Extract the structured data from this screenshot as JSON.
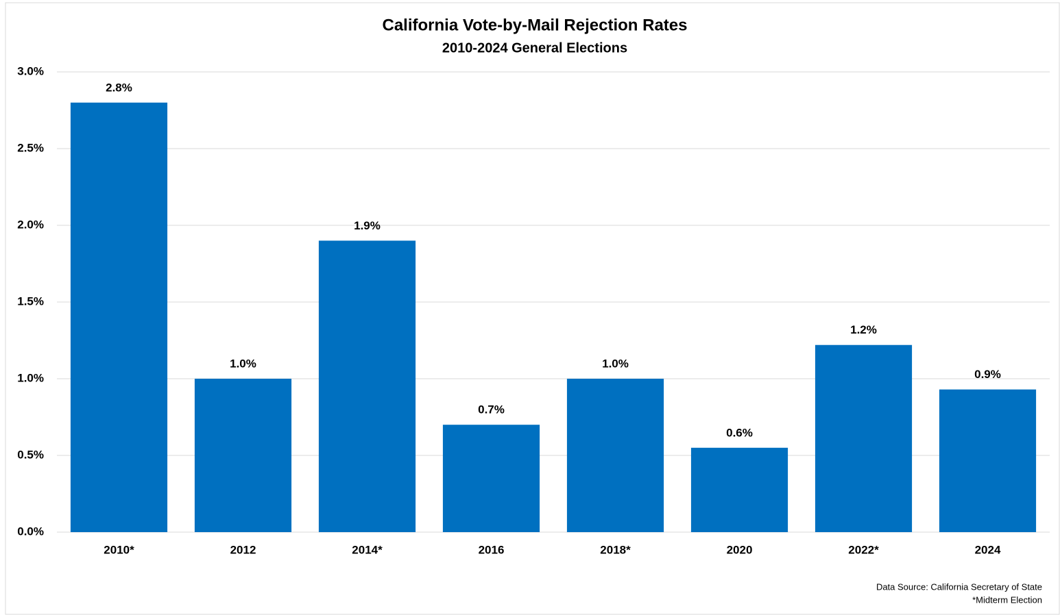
{
  "chart_data": {
    "type": "bar",
    "title": "California Vote-by-Mail Rejection Rates",
    "subtitle": "2010-2024 General Elections",
    "categories": [
      "2010*",
      "2012",
      "2014*",
      "2016",
      "2018*",
      "2020",
      "2022*",
      "2024"
    ],
    "values": [
      2.8,
      1.0,
      1.9,
      0.7,
      1.0,
      0.55,
      1.22,
      0.93
    ],
    "value_labels": [
      "2.8%",
      "1.0%",
      "1.9%",
      "0.7%",
      "1.0%",
      "0.6%",
      "1.2%",
      "0.9%"
    ],
    "color": "#0070c0",
    "ylim": [
      0,
      3
    ],
    "yticks": [
      {
        "value": 0,
        "label": "0.0%"
      },
      {
        "value": 0.5,
        "label": "0.5%"
      },
      {
        "value": 1,
        "label": "1.0%"
      },
      {
        "value": 1.5,
        "label": "1.5%"
      },
      {
        "value": 2,
        "label": "2.0%"
      },
      {
        "value": 2.5,
        "label": "2.5%"
      },
      {
        "value": 3,
        "label": "3.0%"
      }
    ],
    "grid": true,
    "annotations": [
      "Data Source: California Secretary of State",
      "*Midterm Election"
    ]
  }
}
